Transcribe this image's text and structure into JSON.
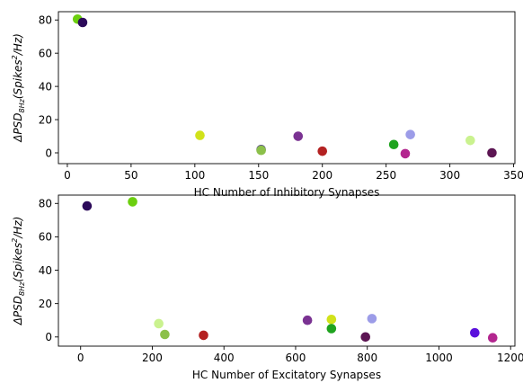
{
  "chart_data": [
    {
      "type": "scatter",
      "xlabel": "HC Number of Inhibitory Synapses",
      "ylabel": {
        "prefix": "ΔPSD",
        "sub": "8Hz",
        "mid": "(Spikes",
        "sup": "2",
        "suffix": "/Hz)"
      },
      "xlim": [
        -7,
        351
      ],
      "ylim": [
        -6.5,
        85
      ],
      "xticks": [
        0,
        50,
        100,
        150,
        200,
        250,
        300,
        350
      ],
      "yticks": [
        0,
        20,
        40,
        60,
        80
      ],
      "points": [
        {
          "x": 8,
          "y": 80.5,
          "color": "#6ccf0f"
        },
        {
          "x": 12,
          "y": 78.5,
          "color": "#2c0a5a"
        },
        {
          "x": 104,
          "y": 10.5,
          "color": "#d1e21a"
        },
        {
          "x": 152,
          "y": 2,
          "color": "#5b4f86"
        },
        {
          "x": 152,
          "y": 1.5,
          "color": "#8cc04a"
        },
        {
          "x": 181,
          "y": 10,
          "color": "#7a3292"
        },
        {
          "x": 200,
          "y": 1,
          "color": "#b42222"
        },
        {
          "x": 256,
          "y": 5,
          "color": "#1fa31f"
        },
        {
          "x": 265,
          "y": -0.5,
          "color": "#b3268f"
        },
        {
          "x": 269,
          "y": 11,
          "color": "#9c9ce8"
        },
        {
          "x": 316,
          "y": 7.5,
          "color": "#caf28f"
        },
        {
          "x": 333,
          "y": 0,
          "color": "#5c1553"
        }
      ]
    },
    {
      "type": "scatter",
      "xlabel": "HC Number of Excitatory Synapses",
      "ylabel": {
        "prefix": "ΔPSD",
        "sub": "8Hz",
        "mid": "(Spikes",
        "sup": "2",
        "suffix": "/Hz)"
      },
      "xlim": [
        -62,
        1212
      ],
      "ylim": [
        -5.5,
        85
      ],
      "xticks": [
        0,
        200,
        400,
        600,
        800,
        1000,
        1200
      ],
      "yticks": [
        0,
        20,
        40,
        60,
        80
      ],
      "points": [
        {
          "x": 18,
          "y": 78.5,
          "color": "#2c0a5a"
        },
        {
          "x": 145,
          "y": 81,
          "color": "#6ccf0f"
        },
        {
          "x": 218,
          "y": 8,
          "color": "#caf28f"
        },
        {
          "x": 235,
          "y": 1.5,
          "color": "#8cc04a"
        },
        {
          "x": 343,
          "y": 1,
          "color": "#b42222"
        },
        {
          "x": 633,
          "y": 10,
          "color": "#7a3292"
        },
        {
          "x": 700,
          "y": 10.5,
          "color": "#d1e21a"
        },
        {
          "x": 700,
          "y": 5,
          "color": "#1fa31f"
        },
        {
          "x": 795,
          "y": 0,
          "color": "#5c1553"
        },
        {
          "x": 813,
          "y": 11,
          "color": "#9c9ce8"
        },
        {
          "x": 1100,
          "y": 2.5,
          "color": "#5a10dc"
        },
        {
          "x": 1150,
          "y": -0.5,
          "color": "#b3268f"
        }
      ]
    }
  ]
}
